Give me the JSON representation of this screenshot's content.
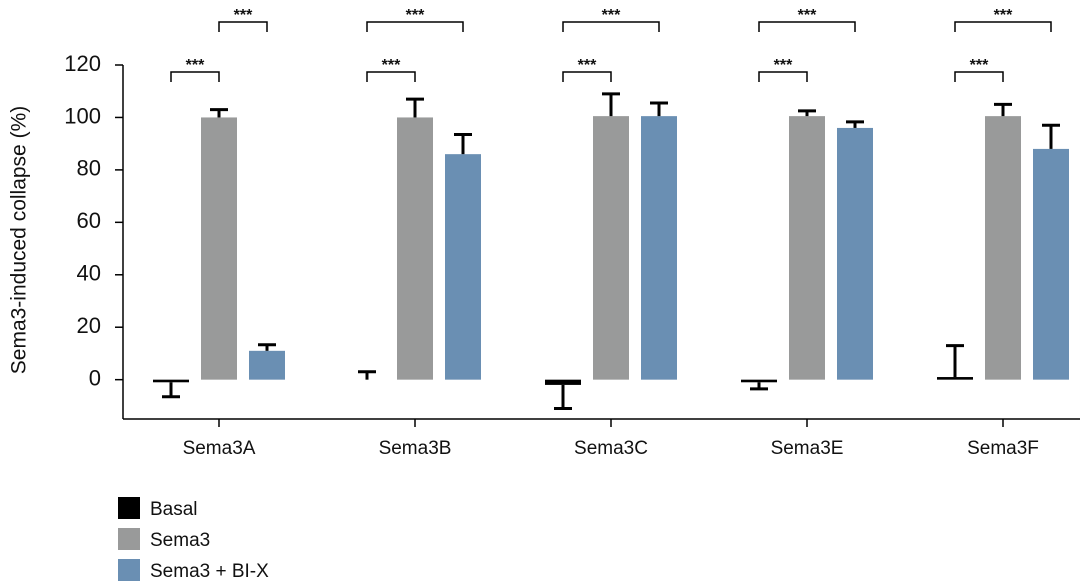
{
  "chart_data": {
    "type": "bar",
    "y_label": "Sema3-induced collapse (%)",
    "categories": [
      "Sema3A",
      "Sema3B",
      "Sema3C",
      "Sema3E",
      "Sema3F"
    ],
    "series": [
      {
        "name": "Basal",
        "color": "#000000",
        "values": [
          -1,
          0,
          -2,
          -1,
          1
        ],
        "errors": [
          5.5,
          3,
          9,
          2.5,
          12
        ]
      },
      {
        "name": "Sema3",
        "color": "#999a9a",
        "values": [
          100,
          100,
          100.5,
          100.5,
          100.5
        ],
        "errors": [
          3,
          7,
          8.5,
          2,
          4.5
        ]
      },
      {
        "name": "Sema3 + BI-X",
        "color": "#6a8fb3",
        "values": [
          11,
          86,
          100.5,
          96,
          88
        ],
        "errors": [
          2.3,
          7.5,
          5,
          2.3,
          9
        ]
      }
    ],
    "significance": [
      [
        {
          "from": 0,
          "to": 1,
          "label": "***"
        },
        {
          "from": 1,
          "to": 2,
          "label": "***"
        }
      ],
      [
        {
          "from": 0,
          "to": 1,
          "label": "***"
        },
        {
          "from": 0,
          "to": 2,
          "label": "***"
        }
      ],
      [
        {
          "from": 0,
          "to": 1,
          "label": "***"
        },
        {
          "from": 0,
          "to": 2,
          "label": "***"
        }
      ],
      [
        {
          "from": 0,
          "to": 1,
          "label": "***"
        },
        {
          "from": 0,
          "to": 2,
          "label": "***"
        }
      ],
      [
        {
          "from": 0,
          "to": 1,
          "label": "***"
        },
        {
          "from": 0,
          "to": 2,
          "label": "***"
        }
      ]
    ],
    "ylim": [
      -15,
      120
    ],
    "yticks": [
      0,
      20,
      40,
      60,
      80,
      100,
      120
    ],
    "grid": false
  }
}
